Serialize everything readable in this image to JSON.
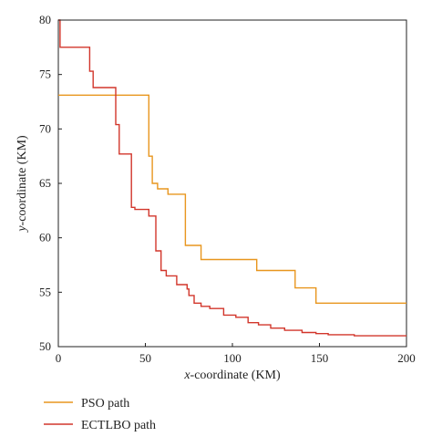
{
  "chart_data": {
    "type": "line",
    "title": "",
    "xlabel_italic": "x",
    "xlabel_rest": "-coordinate (KM)",
    "ylabel_italic": "y",
    "ylabel_rest": "-coordinate (KM)",
    "xlim": [
      0,
      200
    ],
    "ylim": [
      50,
      80
    ],
    "x_ticks": [
      "0",
      "50",
      "100",
      "150",
      "200"
    ],
    "y_ticks": [
      "50",
      "55",
      "60",
      "65",
      "70",
      "75",
      "80"
    ],
    "grid": false,
    "legend_position": "bottom-left, below plot",
    "series": [
      {
        "name": "PSO path",
        "color": "#e8961e",
        "x": [
          0,
          52,
          52,
          54,
          54,
          57,
          57,
          63,
          63,
          73,
          73,
          82,
          82,
          114,
          114,
          136,
          136,
          148,
          148,
          192,
          192,
          200
        ],
        "y": [
          73.1,
          73.1,
          67.5,
          67.5,
          65.0,
          65.0,
          64.5,
          64.5,
          64.0,
          64.0,
          59.3,
          59.3,
          58.0,
          58.0,
          57.0,
          57.0,
          55.4,
          55.4,
          54.0,
          54.0,
          54.0,
          54.0
        ]
      },
      {
        "name": "ECTLBO path",
        "color": "#d2362b",
        "x": [
          0,
          1,
          1,
          18,
          18,
          20,
          20,
          24,
          24,
          33,
          33,
          35,
          35,
          38,
          38,
          42,
          42,
          44,
          44,
          52,
          52,
          56,
          56,
          57,
          57,
          59,
          59,
          62,
          62,
          66,
          66,
          68,
          68,
          72,
          72,
          74,
          74,
          75,
          75,
          78,
          78,
          82,
          82,
          87,
          87,
          95,
          95,
          102,
          102,
          109,
          109,
          115,
          115,
          122,
          122,
          130,
          130,
          140,
          140,
          148,
          148,
          155,
          155,
          170,
          170,
          185,
          185,
          200
        ],
        "y": [
          80,
          80,
          77.5,
          77.5,
          75.3,
          75.3,
          73.8,
          73.8,
          73.8,
          73.8,
          70.4,
          70.4,
          67.7,
          67.7,
          67.7,
          67.7,
          62.8,
          62.8,
          62.6,
          62.6,
          62.0,
          62.0,
          58.8,
          58.8,
          58.8,
          58.8,
          57.0,
          57.0,
          56.5,
          56.5,
          56.5,
          56.5,
          55.7,
          55.7,
          55.7,
          55.7,
          55.3,
          55.3,
          54.7,
          54.7,
          54.0,
          54.0,
          53.7,
          53.7,
          53.5,
          53.5,
          52.9,
          52.9,
          52.7,
          52.7,
          52.2,
          52.2,
          52.0,
          52.0,
          51.7,
          51.7,
          51.5,
          51.5,
          51.3,
          51.3,
          51.2,
          51.2,
          51.1,
          51.1,
          51.0,
          51.0,
          51.0,
          51.0
        ]
      }
    ]
  }
}
